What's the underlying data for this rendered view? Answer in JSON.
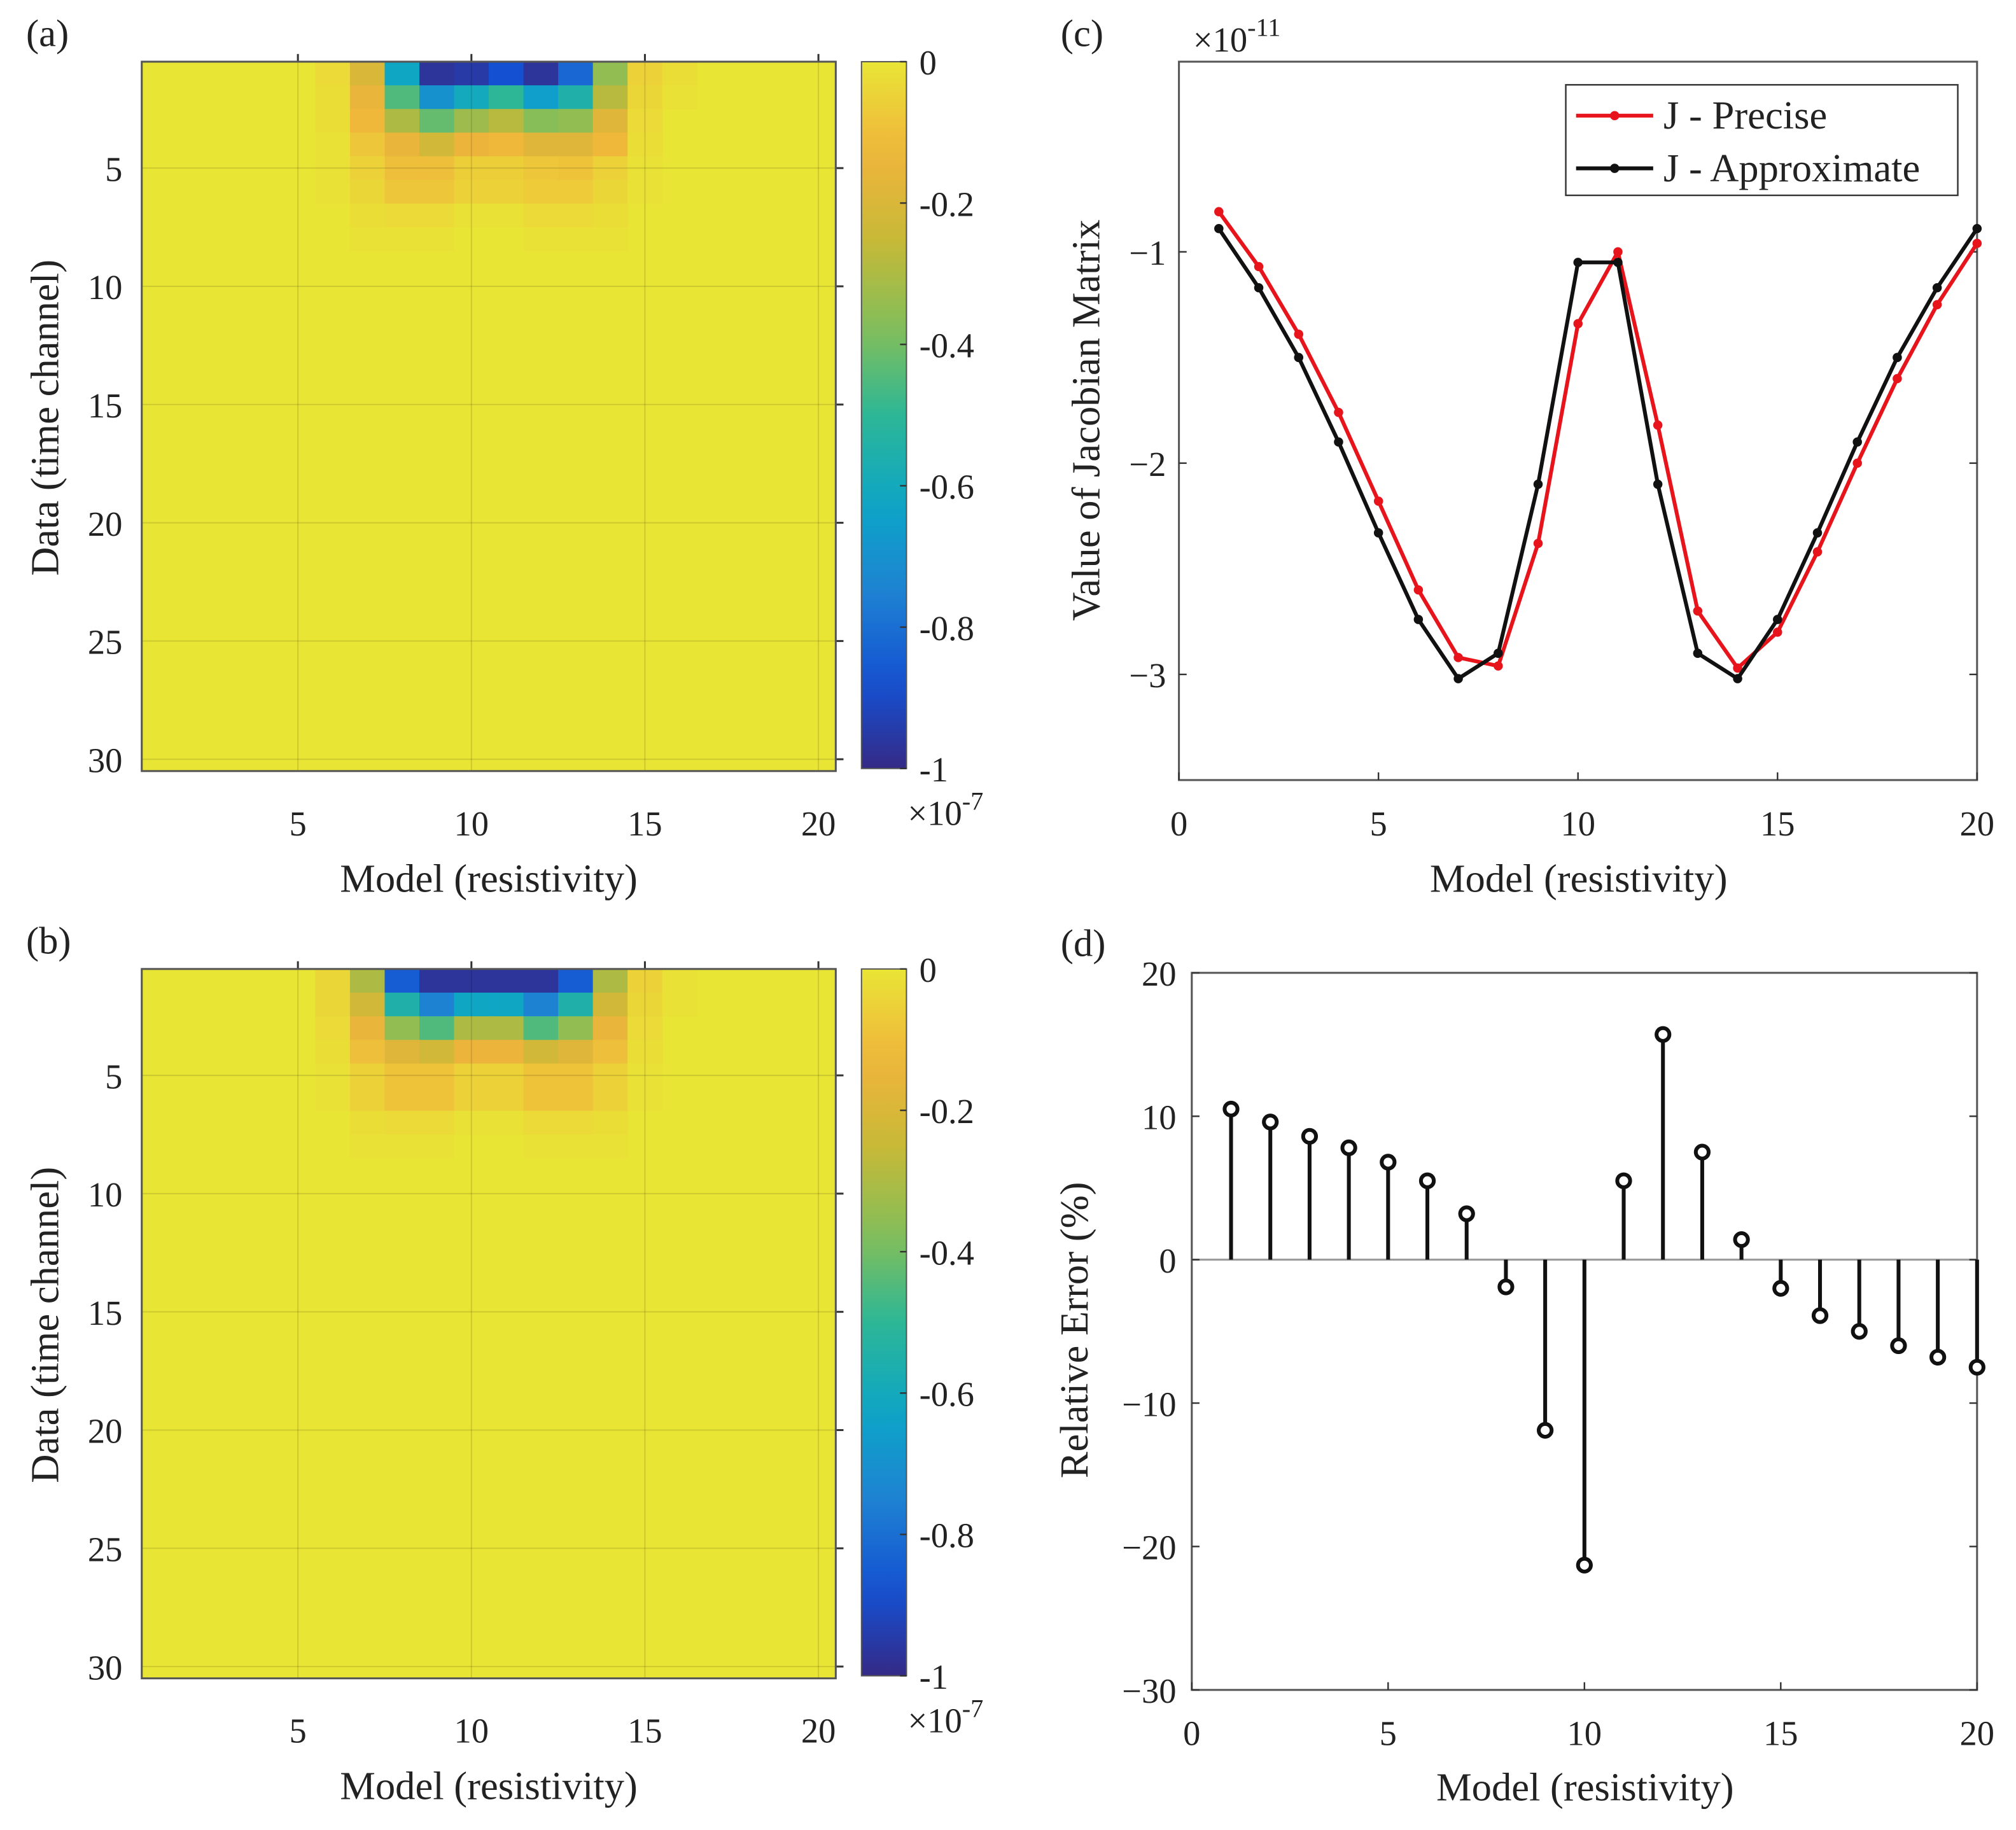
{
  "colors": {
    "red": "#e8141c",
    "black": "#111111",
    "axis": "#555555"
  },
  "chart_data": [
    {
      "id": "a",
      "panel_label": "(a)",
      "type": "heatmap",
      "xlabel": "Model (resistivity)",
      "ylabel": "Data (time channel)",
      "rows": 30,
      "cols": 20,
      "x_ticks": [
        "5",
        "10",
        "15",
        "20"
      ],
      "x_tick_values": [
        5,
        10,
        15,
        20
      ],
      "y_ticks": [
        "5",
        "10",
        "15",
        "20",
        "25",
        "30"
      ],
      "y_tick_values": [
        5,
        10,
        15,
        20,
        25,
        30
      ],
      "colorbar": {
        "ticks": [
          "0",
          "-0.2",
          "-0.4",
          "-0.6",
          "-0.8",
          "-1"
        ],
        "tick_values": [
          0,
          -0.2,
          -0.4,
          -0.6,
          -0.8,
          -1
        ],
        "range": [
          -1,
          0
        ],
        "exponent_base": "×10",
        "exponent": "-7",
        "colormap": "parula"
      },
      "values_note_rows_after_listed_are_zero": true,
      "values": [
        [
          0,
          0,
          0,
          0,
          0,
          -0.03,
          -0.2,
          -0.62,
          -0.97,
          -0.95,
          -0.88,
          -0.97,
          -0.82,
          -0.35,
          -0.05,
          -0.02,
          0,
          0,
          0,
          0
        ],
        [
          0,
          0,
          0,
          0,
          0,
          -0.02,
          -0.15,
          -0.45,
          -0.7,
          -0.6,
          -0.5,
          -0.65,
          -0.55,
          -0.28,
          -0.04,
          -0.01,
          0,
          0,
          0,
          0
        ],
        [
          0,
          0,
          0,
          0,
          0,
          -0.02,
          -0.12,
          -0.3,
          -0.42,
          -0.33,
          -0.28,
          -0.37,
          -0.35,
          -0.18,
          -0.03,
          0,
          0,
          0,
          0,
          0
        ],
        [
          0,
          0,
          0,
          0,
          0,
          -0.01,
          -0.08,
          -0.15,
          -0.22,
          -0.14,
          -0.12,
          -0.18,
          -0.18,
          -0.12,
          -0.02,
          0,
          0,
          0,
          0,
          0
        ],
        [
          0,
          0,
          0,
          0,
          0,
          -0.01,
          -0.05,
          -0.1,
          -0.1,
          -0.06,
          -0.06,
          -0.08,
          -0.09,
          -0.05,
          -0.01,
          0,
          0,
          0,
          0,
          0
        ],
        [
          0,
          0,
          0,
          0,
          0,
          -0.01,
          -0.04,
          -0.08,
          -0.08,
          -0.05,
          -0.05,
          -0.07,
          -0.07,
          -0.04,
          -0.01,
          0,
          0,
          0,
          0,
          0
        ],
        [
          0,
          0,
          0,
          0,
          0,
          0,
          -0.02,
          -0.03,
          -0.03,
          -0.01,
          -0.01,
          -0.03,
          -0.03,
          -0.02,
          0,
          0,
          0,
          0,
          0,
          0
        ],
        [
          0,
          0,
          0,
          0,
          0,
          0,
          -0.01,
          -0.01,
          -0.01,
          0,
          0,
          -0.01,
          -0.01,
          -0.01,
          0,
          0,
          0,
          0,
          0,
          0
        ]
      ]
    },
    {
      "id": "b",
      "panel_label": "(b)",
      "type": "heatmap",
      "xlabel": "Model (resistivity)",
      "ylabel": "Data (time channel)",
      "rows": 30,
      "cols": 20,
      "x_ticks": [
        "5",
        "10",
        "15",
        "20"
      ],
      "x_tick_values": [
        5,
        10,
        15,
        20
      ],
      "y_ticks": [
        "5",
        "10",
        "15",
        "20",
        "25",
        "30"
      ],
      "y_tick_values": [
        5,
        10,
        15,
        20,
        25,
        30
      ],
      "colorbar": {
        "ticks": [
          "0",
          "-0.2",
          "-0.4",
          "-0.6",
          "-0.8",
          "-1"
        ],
        "tick_values": [
          0,
          -0.2,
          -0.4,
          -0.6,
          -0.8,
          -1
        ],
        "range": [
          -1,
          0
        ],
        "exponent_base": "×10",
        "exponent": "-7",
        "colormap": "parula"
      },
      "values_note_rows_after_listed_are_zero": true,
      "values": [
        [
          0,
          0,
          0,
          0,
          0,
          -0.04,
          -0.3,
          -0.85,
          -0.97,
          -0.97,
          -0.97,
          -0.97,
          -0.85,
          -0.3,
          -0.05,
          -0.01,
          0,
          0,
          0,
          0
        ],
        [
          0,
          0,
          0,
          0,
          0,
          -0.04,
          -0.22,
          -0.55,
          -0.75,
          -0.62,
          -0.62,
          -0.75,
          -0.55,
          -0.22,
          -0.04,
          -0.01,
          0,
          0,
          0,
          0
        ],
        [
          0,
          0,
          0,
          0,
          0,
          -0.03,
          -0.15,
          -0.35,
          -0.45,
          -0.3,
          -0.3,
          -0.45,
          -0.35,
          -0.15,
          -0.03,
          0,
          0,
          0,
          0,
          0
        ],
        [
          0,
          0,
          0,
          0,
          0,
          -0.02,
          -0.1,
          -0.18,
          -0.22,
          -0.14,
          -0.14,
          -0.22,
          -0.18,
          -0.1,
          -0.02,
          0,
          0,
          0,
          0,
          0
        ],
        [
          0,
          0,
          0,
          0,
          0,
          -0.01,
          -0.05,
          -0.09,
          -0.09,
          -0.05,
          -0.05,
          -0.09,
          -0.09,
          -0.05,
          -0.01,
          0,
          0,
          0,
          0,
          0
        ],
        [
          0,
          0,
          0,
          0,
          0,
          -0.01,
          -0.05,
          -0.09,
          -0.09,
          -0.05,
          -0.05,
          -0.09,
          -0.09,
          -0.05,
          -0.01,
          0,
          0,
          0,
          0,
          0
        ],
        [
          0,
          0,
          0,
          0,
          0,
          0,
          -0.02,
          -0.03,
          -0.03,
          -0.01,
          -0.01,
          -0.03,
          -0.03,
          -0.02,
          0,
          0,
          0,
          0,
          0,
          0
        ],
        [
          0,
          0,
          0,
          0,
          0,
          0,
          -0.01,
          -0.01,
          -0.01,
          0,
          0,
          -0.01,
          -0.01,
          -0.01,
          0,
          0,
          0,
          0,
          0,
          0
        ]
      ]
    },
    {
      "id": "c",
      "panel_label": "(c)",
      "type": "line",
      "xlabel": "Model (resistivity)",
      "ylabel": "Value of Jacobian Matrix",
      "exponent_base": "×10",
      "exponent": "-11",
      "xlim": [
        0,
        20
      ],
      "ylim": [
        -3.5,
        -0.1
      ],
      "x_ticks": [
        "0",
        "5",
        "10",
        "15",
        "20"
      ],
      "x_tick_values": [
        0,
        5,
        10,
        15,
        20
      ],
      "y_ticks": [
        "−1",
        "−2",
        "−3"
      ],
      "y_tick_values": [
        -1,
        -2,
        -3
      ],
      "legend_position": "top-right",
      "x": [
        1,
        2,
        3,
        4,
        5,
        6,
        7,
        8,
        9,
        10,
        11,
        12,
        13,
        14,
        15,
        16,
        17,
        18,
        19,
        20
      ],
      "series": [
        {
          "name": "J - Precise",
          "color": "#e8141c",
          "values": [
            -0.81,
            -1.07,
            -1.39,
            -1.76,
            -2.18,
            -2.6,
            -2.92,
            -2.96,
            -2.38,
            -1.34,
            -1.0,
            -1.82,
            -2.7,
            -2.97,
            -2.8,
            -2.42,
            -2.0,
            -1.6,
            -1.25,
            -0.96
          ]
        },
        {
          "name": "J - Approximate",
          "color": "#111111",
          "values": [
            -0.89,
            -1.17,
            -1.5,
            -1.9,
            -2.33,
            -2.74,
            -3.02,
            -2.9,
            -2.1,
            -1.05,
            -1.05,
            -2.1,
            -2.9,
            -3.02,
            -2.74,
            -2.33,
            -1.9,
            -1.5,
            -1.17,
            -0.89
          ]
        }
      ]
    },
    {
      "id": "d",
      "panel_label": "(d)",
      "type": "stem",
      "xlabel": "Model (resistivity)",
      "ylabel": "Relative Error (%)",
      "xlim": [
        0,
        20
      ],
      "ylim": [
        -30,
        20
      ],
      "x_ticks": [
        "0",
        "5",
        "10",
        "15",
        "20"
      ],
      "x_tick_values": [
        0,
        5,
        10,
        15,
        20
      ],
      "y_ticks": [
        "20",
        "10",
        "0",
        "−10",
        "−20",
        "−30"
      ],
      "y_tick_values": [
        20,
        10,
        0,
        -10,
        -20,
        -30
      ],
      "x": [
        1,
        2,
        3,
        4,
        5,
        6,
        7,
        8,
        9,
        10,
        11,
        12,
        13,
        14,
        15,
        16,
        17,
        18,
        19,
        20
      ],
      "values": [
        10.5,
        9.6,
        8.6,
        7.8,
        6.8,
        5.5,
        3.2,
        -1.9,
        -11.9,
        -21.3,
        5.5,
        15.7,
        7.5,
        1.4,
        -2.0,
        -3.9,
        -5.0,
        -6.0,
        -6.8,
        -7.5
      ]
    }
  ]
}
